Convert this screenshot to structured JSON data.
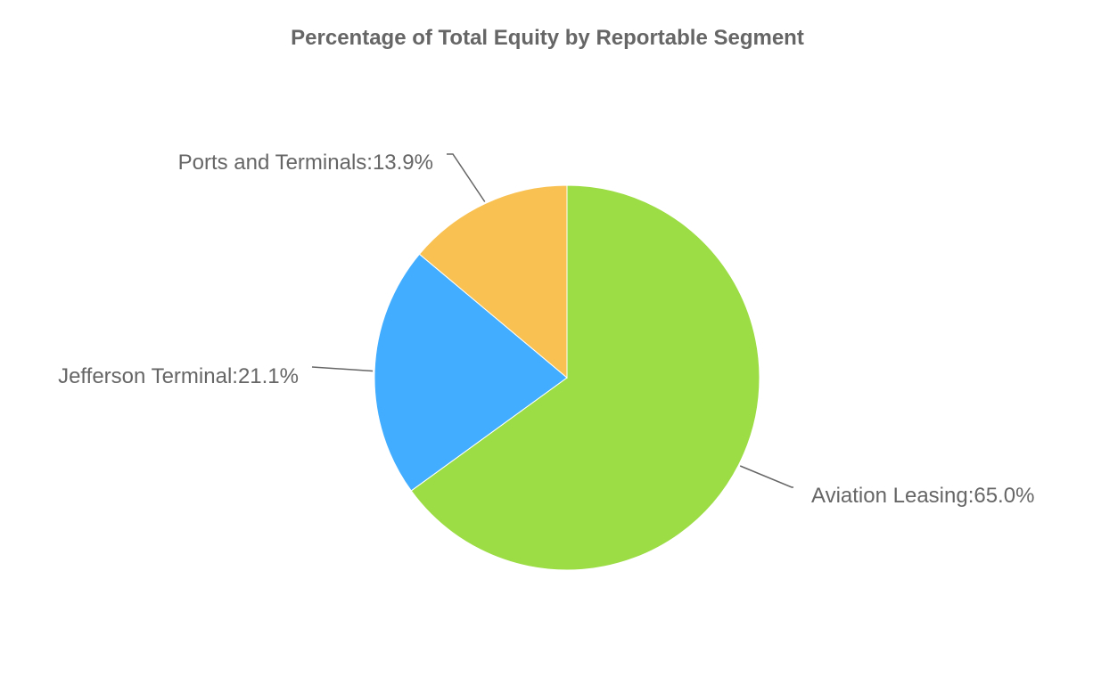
{
  "chart_data": {
    "type": "pie",
    "title": "Percentage of Total Equity by Reportable Segment",
    "slices": [
      {
        "name": "Aviation Leasing",
        "value": 65.0,
        "label": "Aviation Leasing:65.0%",
        "color": "#9cdc44"
      },
      {
        "name": "Jefferson Terminal",
        "value": 21.1,
        "label": "Jefferson Terminal:21.1%",
        "color": "#42adff"
      },
      {
        "name": "Ports and Terminals",
        "value": 13.9,
        "label": "Ports and Terminals:13.9%",
        "color": "#f9c152"
      }
    ],
    "start_angle": "12 o'clock",
    "direction": "clockwise",
    "legend": "none"
  }
}
